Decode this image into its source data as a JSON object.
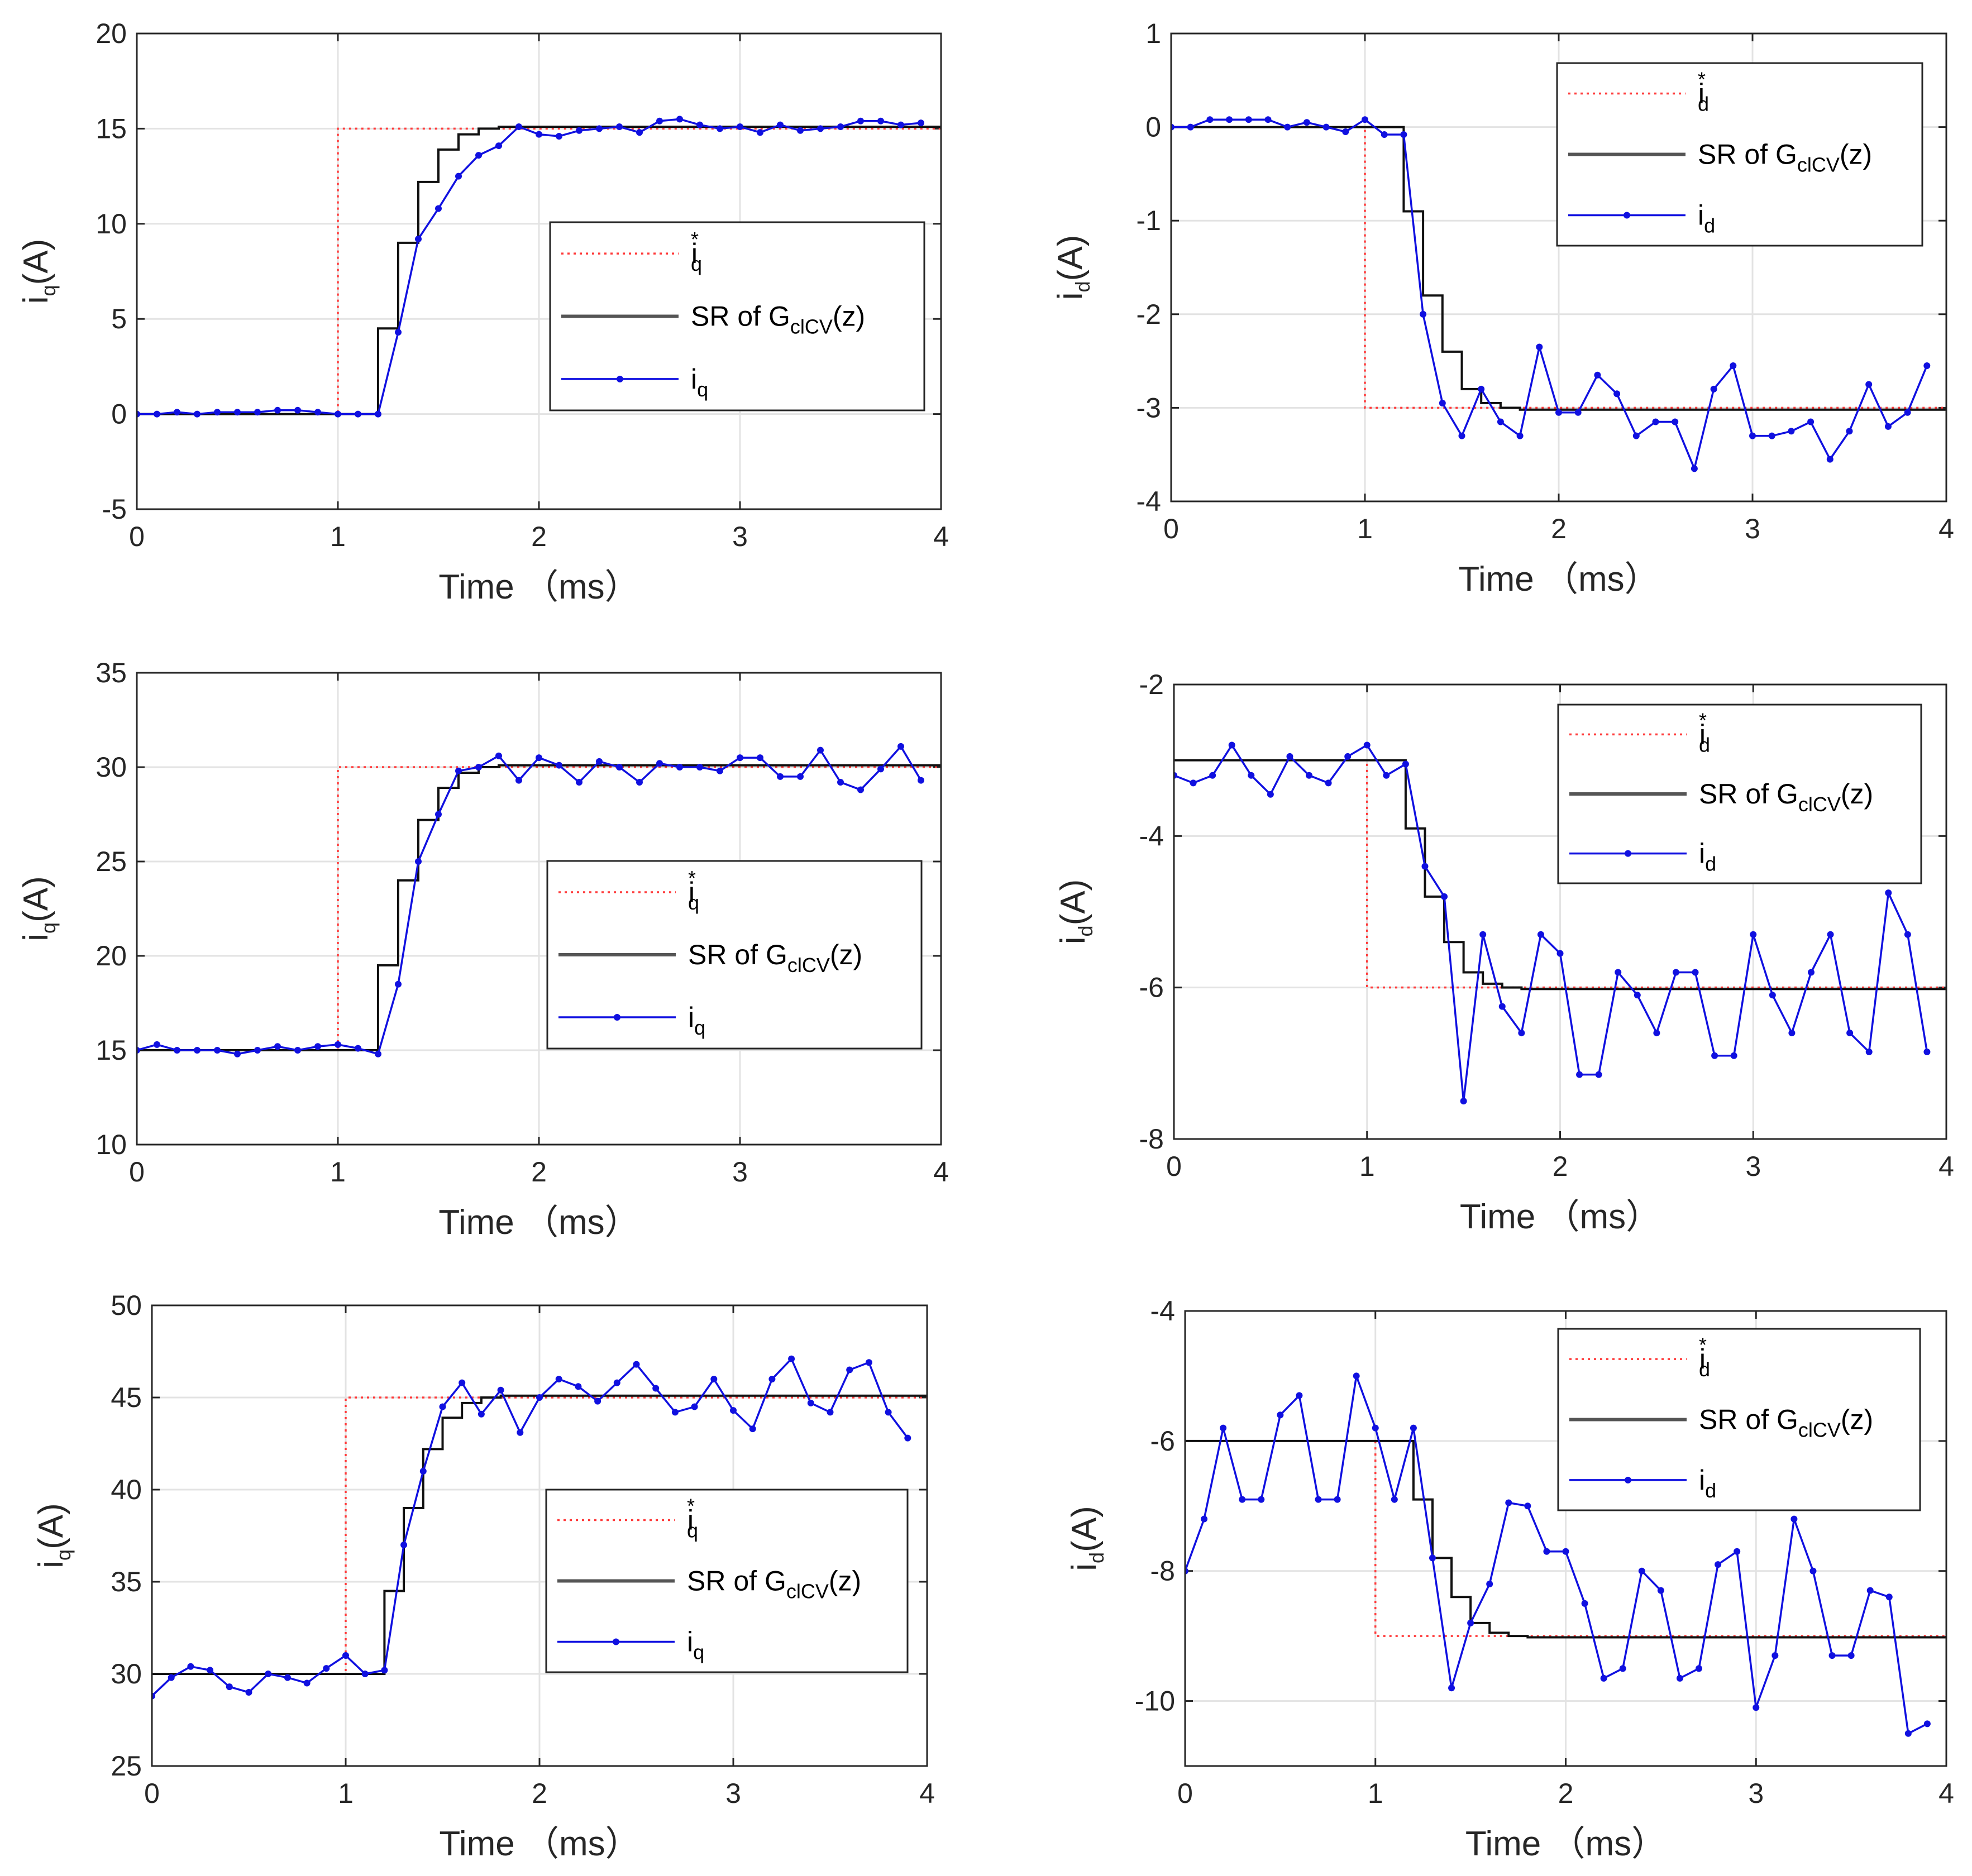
{
  "chart_data": [
    {
      "type": "line",
      "panel": "left-top",
      "xlabel": "Time （ms）",
      "ylabel": "iq(A)",
      "ylabel_main": "i",
      "ylabel_sub": "q",
      "ylabel_rest": "(A)",
      "xlim": [
        0,
        4
      ],
      "ylim": [
        -5,
        20
      ],
      "xticks": [
        0,
        1,
        2,
        3,
        4
      ],
      "yticks": [
        -5,
        0,
        5,
        10,
        15,
        20
      ],
      "grid": true,
      "legend_position": "right",
      "legend": [
        {
          "main": "i",
          "sub": "q",
          "sup": "*"
        },
        {
          "main": "SR of G",
          "sub": "clCV",
          "rest": "(z)"
        },
        {
          "main": "i",
          "sub": "q"
        }
      ],
      "series": [
        {
          "name": "iq*",
          "style": "dotted-red",
          "x": [
            0,
            1,
            1,
            4
          ],
          "y": [
            0,
            0,
            15,
            15
          ]
        },
        {
          "name": "SR of GclCV(z)",
          "style": "step-black",
          "x": [
            0,
            1.2,
            1.3,
            1.4,
            1.5,
            1.6,
            1.7,
            1.8,
            1.9,
            4
          ],
          "y": [
            0,
            4.5,
            9,
            12.2,
            13.9,
            14.7,
            15,
            15.1,
            15.1,
            15
          ]
        },
        {
          "name": "iq",
          "style": "marker-blue",
          "x": [
            0,
            0.1,
            0.2,
            0.3,
            0.4,
            0.5,
            0.6,
            0.7,
            0.8,
            0.9,
            1.0,
            1.1,
            1.2,
            1.3,
            1.4,
            1.5,
            1.6,
            1.7,
            1.8,
            1.9,
            2.0,
            2.1,
            2.2,
            2.3,
            2.4,
            2.5,
            2.6,
            2.7,
            2.8,
            2.9,
            3.0,
            3.1,
            3.2,
            3.3,
            3.4,
            3.5,
            3.6,
            3.7,
            3.8,
            3.9
          ],
          "y": [
            0,
            0,
            0.1,
            0,
            0.1,
            0.1,
            0.1,
            0.2,
            0.2,
            0.1,
            0,
            0,
            0,
            4.3,
            9.2,
            10.8,
            12.5,
            13.6,
            14.1,
            15.1,
            14.7,
            14.6,
            14.9,
            15,
            15.1,
            14.8,
            15.4,
            15.5,
            15.2,
            15,
            15.1,
            14.8,
            15.2,
            14.9,
            15,
            15.1,
            15.4,
            15.4,
            15.2,
            15.3
          ]
        }
      ]
    },
    {
      "type": "line",
      "panel": "right-top",
      "xlabel": "Time （ms）",
      "ylabel": "id(A)",
      "ylabel_main": "i",
      "ylabel_sub": "d",
      "ylabel_rest": "(A)",
      "xlim": [
        0,
        4
      ],
      "ylim": [
        -4,
        1
      ],
      "xticks": [
        0,
        1,
        2,
        3,
        4
      ],
      "yticks": [
        -4,
        -3,
        -2,
        -1,
        0,
        1
      ],
      "grid": true,
      "legend_position": "top-right",
      "legend": [
        {
          "main": "i",
          "sub": "d",
          "sup": "*"
        },
        {
          "main": "SR of G",
          "sub": "clCV",
          "rest": "(z)"
        },
        {
          "main": "i",
          "sub": "d"
        }
      ],
      "series": [
        {
          "name": "id*",
          "style": "dotted-red",
          "x": [
            0,
            1,
            1,
            4
          ],
          "y": [
            0,
            0,
            -3,
            -3
          ]
        },
        {
          "name": "SR of GclCV(z)",
          "style": "step-black",
          "x": [
            0,
            1.2,
            1.3,
            1.4,
            1.5,
            1.6,
            1.7,
            1.8,
            1.9,
            4
          ],
          "y": [
            0,
            -0.9,
            -1.8,
            -2.4,
            -2.8,
            -2.95,
            -3,
            -3.02,
            -3.02,
            -3
          ]
        },
        {
          "name": "id",
          "style": "marker-blue",
          "x": [
            0,
            0.1,
            0.2,
            0.3,
            0.4,
            0.5,
            0.6,
            0.7,
            0.8,
            0.9,
            1.0,
            1.1,
            1.2,
            1.3,
            1.4,
            1.5,
            1.6,
            1.7,
            1.8,
            1.9,
            2.0,
            2.1,
            2.2,
            2.3,
            2.4,
            2.5,
            2.6,
            2.7,
            2.8,
            2.9,
            3.0,
            3.1,
            3.2,
            3.3,
            3.4,
            3.5,
            3.6,
            3.7,
            3.8,
            3.9
          ],
          "y": [
            0,
            0,
            0.08,
            0.08,
            0.08,
            0.08,
            0,
            0.05,
            0,
            -0.05,
            0.08,
            -0.08,
            -0.08,
            -2,
            -2.95,
            -3.3,
            -2.8,
            -3.15,
            -3.3,
            -2.35,
            -3.05,
            -3.05,
            -2.65,
            -2.85,
            -3.3,
            -3.15,
            -3.15,
            -3.65,
            -2.8,
            -2.55,
            -3.3,
            -3.3,
            -3.25,
            -3.15,
            -3.55,
            -3.25,
            -2.75,
            -3.2,
            -3.05,
            -2.55
          ]
        }
      ]
    },
    {
      "type": "line",
      "panel": "left-middle",
      "xlabel": "Time （ms）",
      "ylabel": "iq(A)",
      "ylabel_main": "i",
      "ylabel_sub": "q",
      "ylabel_rest": "(A)",
      "xlim": [
        0,
        4
      ],
      "ylim": [
        10,
        35
      ],
      "xticks": [
        0,
        1,
        2,
        3,
        4
      ],
      "yticks": [
        10,
        15,
        20,
        25,
        30,
        35
      ],
      "grid": true,
      "legend_position": "right",
      "legend": [
        {
          "main": "i",
          "sub": "q",
          "sup": "*"
        },
        {
          "main": "SR of G",
          "sub": "clCV",
          "rest": "(z)"
        },
        {
          "main": "i",
          "sub": "q"
        }
      ],
      "series": [
        {
          "name": "iq*",
          "style": "dotted-red",
          "x": [
            0,
            1,
            1,
            4
          ],
          "y": [
            15,
            15,
            30,
            30
          ]
        },
        {
          "name": "SR of GclCV(z)",
          "style": "step-black",
          "x": [
            0,
            1.2,
            1.3,
            1.4,
            1.5,
            1.6,
            1.7,
            1.8,
            1.9,
            4
          ],
          "y": [
            15,
            19.5,
            24,
            27.2,
            28.9,
            29.7,
            30,
            30.1,
            30.1,
            30
          ]
        },
        {
          "name": "iq",
          "style": "marker-blue",
          "x": [
            0,
            0.1,
            0.2,
            0.3,
            0.4,
            0.5,
            0.6,
            0.7,
            0.8,
            0.9,
            1.0,
            1.1,
            1.2,
            1.3,
            1.4,
            1.5,
            1.6,
            1.7,
            1.8,
            1.9,
            2.0,
            2.1,
            2.2,
            2.3,
            2.4,
            2.5,
            2.6,
            2.7,
            2.8,
            2.9,
            3.0,
            3.1,
            3.2,
            3.3,
            3.4,
            3.5,
            3.6,
            3.7,
            3.8,
            3.9
          ],
          "y": [
            15,
            15.3,
            15,
            15,
            15,
            14.8,
            15,
            15.2,
            15,
            15.2,
            15.3,
            15.1,
            14.8,
            18.5,
            25,
            27.5,
            29.8,
            30,
            30.6,
            29.3,
            30.5,
            30.1,
            29.2,
            30.3,
            30,
            29.2,
            30.2,
            30,
            30,
            29.8,
            30.5,
            30.5,
            29.5,
            29.5,
            30.9,
            29.2,
            28.8,
            29.9,
            31.1,
            29.3
          ]
        }
      ]
    },
    {
      "type": "line",
      "panel": "right-middle",
      "xlabel": "Time （ms）",
      "ylabel": "id(A)",
      "ylabel_main": "i",
      "ylabel_sub": "d",
      "ylabel_rest": "(A)",
      "xlim": [
        0,
        4
      ],
      "ylim": [
        -8,
        -2
      ],
      "xticks": [
        0,
        1,
        2,
        3,
        4
      ],
      "yticks": [
        -8,
        -6,
        -4,
        -2
      ],
      "grid": true,
      "legend_position": "top-right",
      "legend": [
        {
          "main": "i",
          "sub": "d",
          "sup": "*"
        },
        {
          "main": "SR of G",
          "sub": "clCV",
          "rest": "(z)"
        },
        {
          "main": "i",
          "sub": "d"
        }
      ],
      "series": [
        {
          "name": "id*",
          "style": "dotted-red",
          "x": [
            0,
            1,
            1,
            4
          ],
          "y": [
            -3,
            -3,
            -6,
            -6
          ]
        },
        {
          "name": "SR of GclCV(z)",
          "style": "step-black",
          "x": [
            0,
            1.2,
            1.3,
            1.4,
            1.5,
            1.6,
            1.7,
            1.8,
            1.9,
            4
          ],
          "y": [
            -3,
            -3.9,
            -4.8,
            -5.4,
            -5.8,
            -5.95,
            -6,
            -6.02,
            -6.02,
            -6
          ]
        },
        {
          "name": "id",
          "style": "marker-blue",
          "x": [
            0,
            0.1,
            0.2,
            0.3,
            0.4,
            0.5,
            0.6,
            0.7,
            0.8,
            0.9,
            1.0,
            1.1,
            1.2,
            1.3,
            1.4,
            1.5,
            1.6,
            1.7,
            1.8,
            1.9,
            2.0,
            2.1,
            2.2,
            2.3,
            2.4,
            2.5,
            2.6,
            2.7,
            2.8,
            2.9,
            3.0,
            3.1,
            3.2,
            3.3,
            3.4,
            3.5,
            3.6,
            3.7,
            3.8,
            3.9
          ],
          "y": [
            -3.2,
            -3.3,
            -3.2,
            -2.8,
            -3.2,
            -3.45,
            -2.95,
            -3.2,
            -3.3,
            -2.95,
            -2.8,
            -3.2,
            -3.05,
            -4.4,
            -4.8,
            -7.5,
            -5.3,
            -6.25,
            -6.6,
            -5.3,
            -5.55,
            -7.15,
            -7.15,
            -5.8,
            -6.1,
            -6.6,
            -5.8,
            -5.8,
            -6.9,
            -6.9,
            -5.3,
            -6.1,
            -6.6,
            -5.8,
            -5.3,
            -6.6,
            -6.85,
            -4.75,
            -5.3,
            -6.85
          ]
        }
      ]
    },
    {
      "type": "line",
      "panel": "left-bottom",
      "xlabel": "Time （ms）",
      "ylabel": "iq(A)",
      "ylabel_main": "i",
      "ylabel_sub": "q",
      "ylabel_rest": "(A)",
      "xlim": [
        0,
        4
      ],
      "ylim": [
        25,
        50
      ],
      "xticks": [
        0,
        1,
        2,
        3,
        4
      ],
      "yticks": [
        25,
        30,
        35,
        40,
        45,
        50
      ],
      "grid": true,
      "legend_position": "right",
      "legend": [
        {
          "main": "i",
          "sub": "q",
          "sup": "*"
        },
        {
          "main": "SR of G",
          "sub": "clCV",
          "rest": "(z)"
        },
        {
          "main": "i",
          "sub": "q"
        }
      ],
      "series": [
        {
          "name": "iq*",
          "style": "dotted-red",
          "x": [
            0,
            1,
            1,
            4
          ],
          "y": [
            30,
            30,
            45,
            45
          ]
        },
        {
          "name": "SR of GclCV(z)",
          "style": "step-black",
          "x": [
            0,
            1.2,
            1.3,
            1.4,
            1.5,
            1.6,
            1.7,
            1.8,
            1.9,
            4
          ],
          "y": [
            30,
            34.5,
            39,
            42.2,
            43.9,
            44.7,
            45,
            45.1,
            45.1,
            45
          ]
        },
        {
          "name": "iq",
          "style": "marker-blue",
          "x": [
            0,
            0.1,
            0.2,
            0.3,
            0.4,
            0.5,
            0.6,
            0.7,
            0.8,
            0.9,
            1.0,
            1.1,
            1.2,
            1.3,
            1.4,
            1.5,
            1.6,
            1.7,
            1.8,
            1.9,
            2.0,
            2.1,
            2.2,
            2.3,
            2.4,
            2.5,
            2.6,
            2.7,
            2.8,
            2.9,
            3.0,
            3.1,
            3.2,
            3.3,
            3.4,
            3.5,
            3.6,
            3.7,
            3.8,
            3.9
          ],
          "y": [
            28.8,
            29.8,
            30.4,
            30.2,
            29.3,
            29,
            30,
            29.8,
            29.5,
            30.3,
            31,
            30,
            30.2,
            37,
            41,
            44.5,
            45.8,
            44.1,
            45.4,
            43.1,
            45,
            46,
            45.6,
            44.8,
            45.8,
            46.8,
            45.5,
            44.2,
            44.5,
            46,
            44.3,
            43.3,
            46,
            47.1,
            44.7,
            44.2,
            46.5,
            46.9,
            44.2,
            42.8
          ]
        }
      ]
    },
    {
      "type": "line",
      "panel": "right-bottom",
      "xlabel": "Time （ms）",
      "ylabel": "id(A)",
      "ylabel_main": "i",
      "ylabel_sub": "d",
      "ylabel_rest": "(A)",
      "xlim": [
        0,
        4
      ],
      "ylim": [
        -11,
        -4
      ],
      "xticks": [
        0,
        1,
        2,
        3,
        4
      ],
      "yticks": [
        -10,
        -8,
        -6,
        -4
      ],
      "grid": true,
      "legend_position": "top-right",
      "legend": [
        {
          "main": "i",
          "sub": "d",
          "sup": "*"
        },
        {
          "main": "SR of G",
          "sub": "clCV",
          "rest": "(z)"
        },
        {
          "main": "i",
          "sub": "d"
        }
      ],
      "series": [
        {
          "name": "id*",
          "style": "dotted-red",
          "x": [
            0,
            1,
            1,
            4
          ],
          "y": [
            -6,
            -6,
            -9,
            -9
          ]
        },
        {
          "name": "SR of GclCV(z)",
          "style": "step-black",
          "x": [
            0,
            1.2,
            1.3,
            1.4,
            1.5,
            1.6,
            1.7,
            1.8,
            1.9,
            4
          ],
          "y": [
            -6,
            -6.9,
            -7.8,
            -8.4,
            -8.8,
            -8.95,
            -9,
            -9.02,
            -9.02,
            -9
          ]
        },
        {
          "name": "id",
          "style": "marker-blue",
          "x": [
            0,
            0.1,
            0.2,
            0.3,
            0.4,
            0.5,
            0.6,
            0.7,
            0.8,
            0.9,
            1.0,
            1.1,
            1.2,
            1.3,
            1.4,
            1.5,
            1.6,
            1.7,
            1.8,
            1.9,
            2.0,
            2.1,
            2.2,
            2.3,
            2.4,
            2.5,
            2.6,
            2.7,
            2.8,
            2.9,
            3.0,
            3.1,
            3.2,
            3.3,
            3.4,
            3.5,
            3.6,
            3.7,
            3.8,
            3.9
          ],
          "y": [
            -8,
            -7.2,
            -5.8,
            -6.9,
            -6.9,
            -5.6,
            -5.3,
            -6.9,
            -6.9,
            -5,
            -5.8,
            -6.9,
            -5.8,
            -7.8,
            -9.8,
            -8.8,
            -8.2,
            -6.95,
            -7,
            -7.7,
            -7.7,
            -8.5,
            -9.65,
            -9.5,
            -8,
            -8.3,
            -9.65,
            -9.5,
            -7.9,
            -7.7,
            -10.1,
            -9.3,
            -7.2,
            -8,
            -9.3,
            -9.3,
            -8.3,
            -8.4,
            -10.5,
            -10.35
          ]
        }
      ]
    }
  ]
}
